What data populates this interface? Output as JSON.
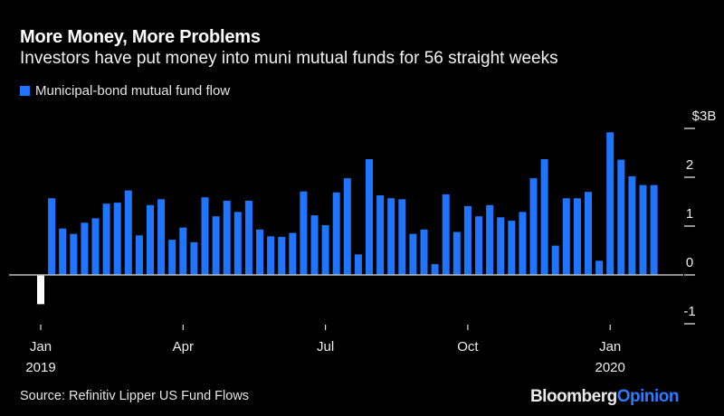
{
  "header": {
    "title": "More Money, More Problems",
    "subtitle": "Investors have put money into muni mutual funds for 56 straight weeks"
  },
  "footer": {
    "source": "Source: Refinitiv Lipper US Fund Flows",
    "logo_primary": "Bloomberg",
    "logo_secondary": "Opinion"
  },
  "colors": {
    "positive_bar": "#1f75fe",
    "negative_bar": "#ffffff",
    "background": "#000000"
  },
  "chart_data": {
    "type": "bar",
    "title": "More Money, More Problems",
    "subtitle": "Investors have put money into muni mutual funds for 56 straight weeks",
    "legend": [
      {
        "name": "Municipal-bond mutual fund flow",
        "color": "#1f75fe"
      }
    ],
    "legend_placement": "top-left",
    "xlabel": "",
    "ylabel": "",
    "ylim": [
      -1,
      3
    ],
    "y_ticks": [
      {
        "value": 3,
        "label": "$3B"
      },
      {
        "value": 2,
        "label": "2"
      },
      {
        "value": 1,
        "label": "1"
      },
      {
        "value": 0,
        "label": "0"
      },
      {
        "value": -1,
        "label": "-1"
      }
    ],
    "x_ticks": [
      {
        "index": 0,
        "label": "Jan",
        "sublabel": "2019"
      },
      {
        "index": 13,
        "label": "Apr",
        "sublabel": ""
      },
      {
        "index": 26,
        "label": "Jul",
        "sublabel": ""
      },
      {
        "index": 39,
        "label": "Oct",
        "sublabel": ""
      },
      {
        "index": 52,
        "label": "Jan",
        "sublabel": "2020"
      }
    ],
    "y_axis_side": "right",
    "grid": false,
    "series": [
      {
        "name": "Municipal-bond mutual fund flow",
        "unit": "$B",
        "values": [
          -0.6,
          1.57,
          0.95,
          0.84,
          1.07,
          1.16,
          1.46,
          1.48,
          1.73,
          0.81,
          1.43,
          1.55,
          0.72,
          0.97,
          0.67,
          1.59,
          1.2,
          1.52,
          1.29,
          1.52,
          0.93,
          0.79,
          0.78,
          0.86,
          1.71,
          1.22,
          1.02,
          1.69,
          1.98,
          0.42,
          2.37,
          1.63,
          1.57,
          1.55,
          0.84,
          0.93,
          0.22,
          1.65,
          0.88,
          1.41,
          1.2,
          1.43,
          1.18,
          1.11,
          1.29,
          1.98,
          2.37,
          0.6,
          1.57,
          1.57,
          1.7,
          0.29,
          2.92,
          2.36,
          2.02,
          1.84,
          1.84
        ]
      }
    ]
  }
}
